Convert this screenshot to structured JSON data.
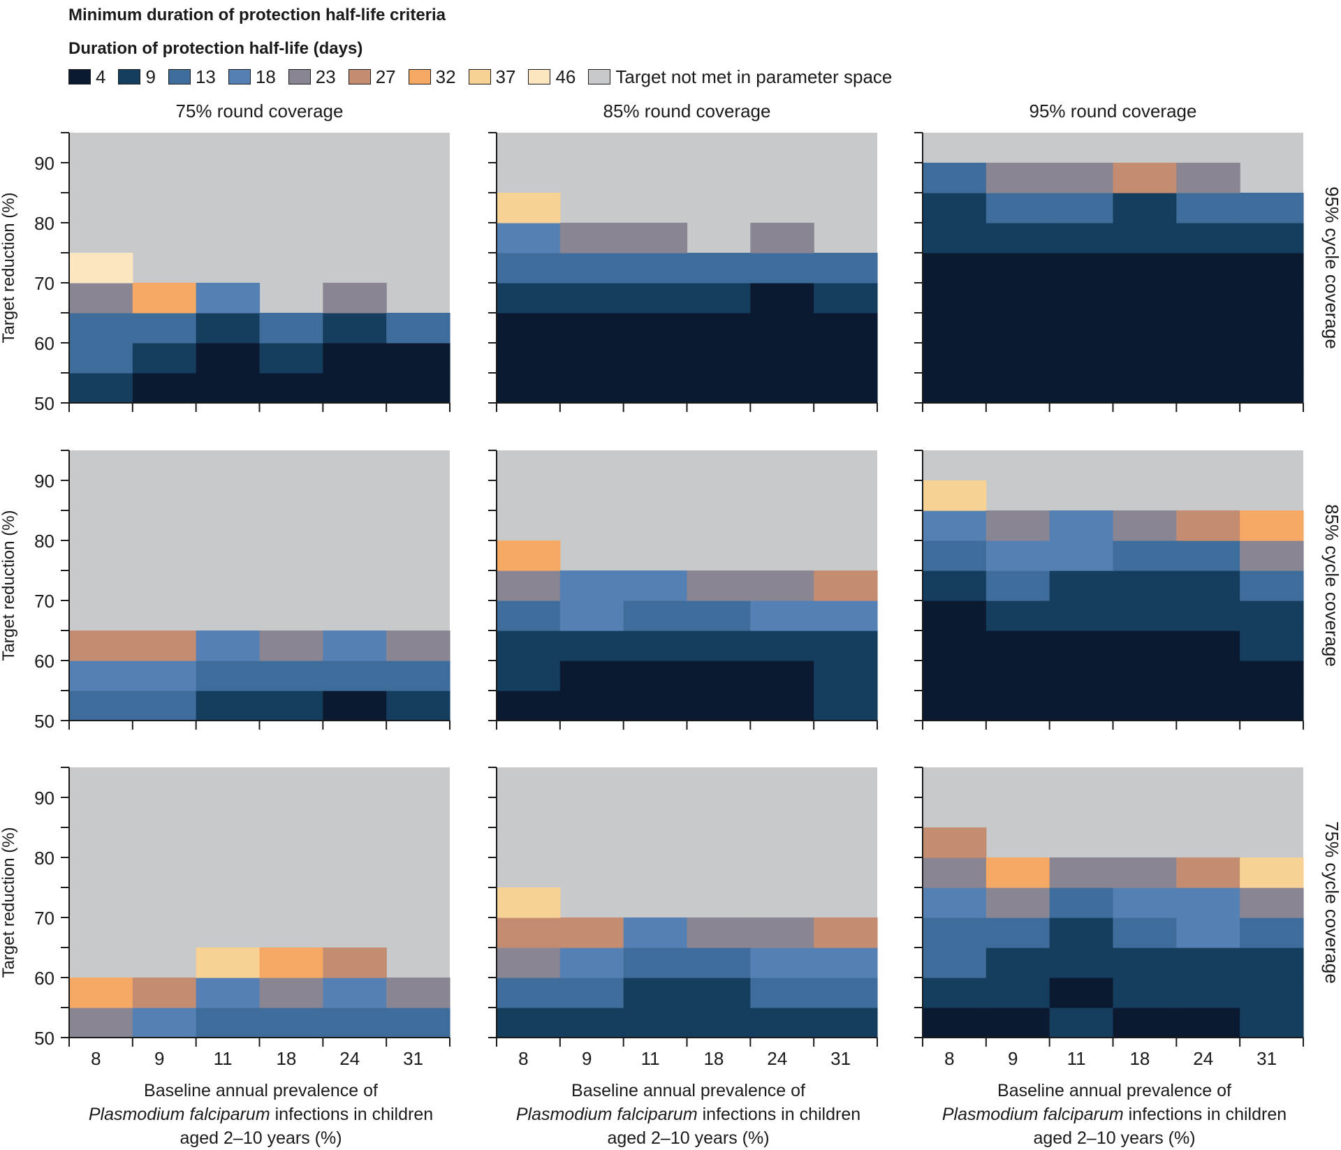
{
  "header": {
    "title": "Minimum duration of protection half-life criteria",
    "legend_title": "Duration of protection half-life (days)"
  },
  "legend": [
    {
      "label": "4",
      "color": "#0b1a30"
    },
    {
      "label": "9",
      "color": "#153d5e"
    },
    {
      "label": "13",
      "color": "#3f6d9b"
    },
    {
      "label": "18",
      "color": "#5580b4"
    },
    {
      "label": "23",
      "color": "#8a8592"
    },
    {
      "label": "27",
      "color": "#c48c70"
    },
    {
      "label": "32",
      "color": "#f6a965"
    },
    {
      "label": "37",
      "color": "#f8d294"
    },
    {
      "label": "46",
      "color": "#fce6c0"
    },
    {
      "label": "Target not met in parameter space",
      "color": "#c8c9cb"
    }
  ],
  "chart_data": {
    "type": "heatmap",
    "column_titles": [
      "75% round coverage",
      "85% round coverage",
      "95% round coverage"
    ],
    "row_titles": [
      "95% cycle coverage",
      "85% cycle coverage",
      "75% cycle coverage"
    ],
    "x_categories": [
      "8",
      "9",
      "11",
      "18",
      "24",
      "31"
    ],
    "y_ticks": [
      "50",
      "60",
      "70",
      "80",
      "90"
    ],
    "y_range": [
      50,
      95
    ],
    "y_bin_edges": [
      50,
      55,
      60,
      65,
      70,
      75,
      80,
      85,
      90,
      95
    ],
    "ylabel": "Target reduction (%)",
    "xlabel": [
      "Baseline annual prevalence of",
      "Plasmodium falciparum infections in children",
      "aged 2–10 years (%)"
    ],
    "xlabel_italic": "Plasmodium falciparum",
    "cell_note": "panels[row][col].columns[x] = half-life category (days) for each 5% target bin from 50 upward; 0 = target not met in parameter space",
    "panels": [
      [
        {
          "columns": [
            [
              9,
              13,
              13,
              23,
              46
            ],
            [
              4,
              9,
              13,
              32
            ],
            [
              4,
              4,
              9,
              18
            ],
            [
              4,
              9,
              13
            ],
            [
              4,
              4,
              9,
              23
            ],
            [
              4,
              4,
              13
            ]
          ]
        },
        {
          "columns": [
            [
              4,
              4,
              4,
              9,
              13,
              18,
              37
            ],
            [
              4,
              4,
              4,
              9,
              13,
              23
            ],
            [
              4,
              4,
              4,
              9,
              13,
              23
            ],
            [
              4,
              4,
              4,
              9,
              13
            ],
            [
              4,
              4,
              4,
              4,
              13,
              23
            ],
            [
              4,
              4,
              4,
              9,
              13
            ]
          ]
        },
        {
          "columns": [
            [
              4,
              4,
              4,
              4,
              4,
              9,
              9,
              13
            ],
            [
              4,
              4,
              4,
              4,
              4,
              9,
              13,
              23
            ],
            [
              4,
              4,
              4,
              4,
              4,
              9,
              13,
              23
            ],
            [
              4,
              4,
              4,
              4,
              4,
              9,
              9,
              27
            ],
            [
              4,
              4,
              4,
              4,
              4,
              9,
              13,
              23
            ],
            [
              4,
              4,
              4,
              4,
              4,
              9,
              13
            ]
          ]
        }
      ],
      [
        {
          "columns": [
            [
              13,
              18,
              27
            ],
            [
              13,
              18,
              27
            ],
            [
              9,
              13,
              18
            ],
            [
              9,
              13,
              23
            ],
            [
              4,
              13,
              18
            ],
            [
              9,
              13,
              23
            ]
          ]
        },
        {
          "columns": [
            [
              4,
              9,
              9,
              13,
              23,
              32
            ],
            [
              4,
              4,
              9,
              18,
              18
            ],
            [
              4,
              4,
              9,
              13,
              18
            ],
            [
              4,
              4,
              9,
              13,
              23
            ],
            [
              4,
              4,
              9,
              18,
              23
            ],
            [
              9,
              9,
              9,
              18,
              27
            ]
          ]
        },
        {
          "columns": [
            [
              4,
              4,
              4,
              4,
              9,
              13,
              18,
              37
            ],
            [
              4,
              4,
              4,
              9,
              13,
              18,
              23
            ],
            [
              4,
              4,
              4,
              9,
              9,
              18,
              18
            ],
            [
              4,
              4,
              4,
              9,
              9,
              13,
              23
            ],
            [
              4,
              4,
              4,
              9,
              9,
              13,
              27
            ],
            [
              4,
              4,
              9,
              9,
              13,
              23,
              32
            ]
          ]
        }
      ],
      [
        {
          "columns": [
            [
              23,
              32
            ],
            [
              18,
              27
            ],
            [
              13,
              18,
              37
            ],
            [
              13,
              23,
              32
            ],
            [
              13,
              18,
              27
            ],
            [
              13,
              23
            ]
          ]
        },
        {
          "columns": [
            [
              9,
              13,
              23,
              27,
              37
            ],
            [
              9,
              13,
              18,
              27
            ],
            [
              9,
              9,
              13,
              18
            ],
            [
              9,
              9,
              13,
              23
            ],
            [
              9,
              13,
              18,
              23
            ],
            [
              9,
              13,
              18,
              27
            ]
          ]
        },
        {
          "columns": [
            [
              4,
              9,
              13,
              13,
              18,
              23,
              27
            ],
            [
              4,
              9,
              9,
              13,
              23,
              32
            ],
            [
              9,
              4,
              9,
              9,
              13,
              23
            ],
            [
              4,
              9,
              9,
              13,
              18,
              23
            ],
            [
              4,
              9,
              9,
              18,
              18,
              27
            ],
            [
              9,
              9,
              9,
              13,
              23,
              37
            ]
          ]
        }
      ]
    ]
  }
}
